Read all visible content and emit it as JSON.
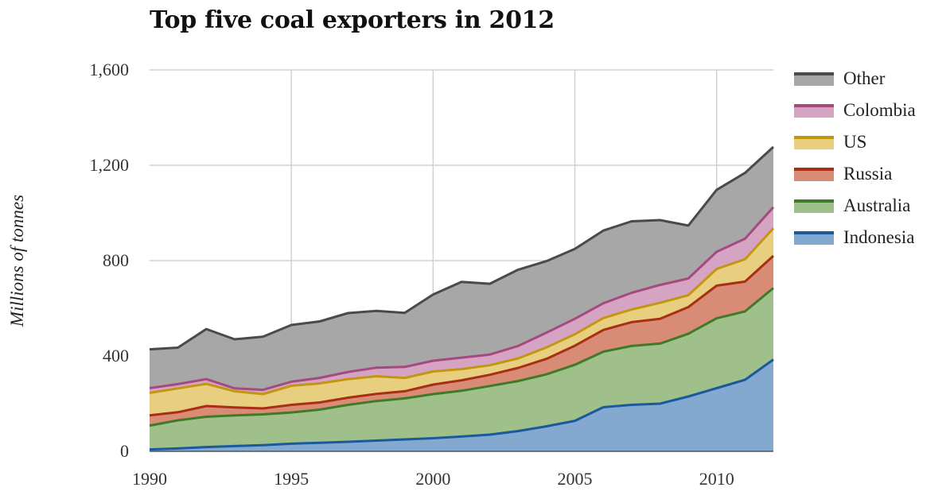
{
  "chart_data": {
    "type": "area",
    "stacked": true,
    "title": "Top five coal exporters in 2012",
    "xlabel": "",
    "ylabel": "Millions of tonnes",
    "xlim": [
      1990,
      2012
    ],
    "ylim": [
      0,
      1600
    ],
    "x_ticks": [
      1990,
      1995,
      2000,
      2005,
      2010
    ],
    "y_ticks": [
      0,
      400,
      800,
      1200,
      1600
    ],
    "y_tick_labels": [
      "0",
      "400",
      "800",
      "1,200",
      "1,600"
    ],
    "grid": true,
    "legend_position": "right",
    "x": [
      1990,
      1991,
      1992,
      1993,
      1994,
      1995,
      1996,
      1997,
      1998,
      1999,
      2000,
      2001,
      2002,
      2003,
      2004,
      2005,
      2006,
      2007,
      2008,
      2009,
      2010,
      2011,
      2012
    ],
    "series": [
      {
        "name": "Indonesia",
        "line_color": "#1a5a9a",
        "fill_color": "#84a9d0",
        "values": [
          8,
          12,
          18,
          22,
          26,
          32,
          36,
          40,
          45,
          50,
          55,
          62,
          70,
          85,
          105,
          128,
          185,
          195,
          200,
          230,
          265,
          300,
          385
        ]
      },
      {
        "name": "Australia",
        "line_color": "#3e7a27",
        "fill_color": "#9fc08a",
        "values": [
          100,
          118,
          127,
          129,
          129,
          131,
          139,
          155,
          166,
          172,
          185,
          192,
          204,
          210,
          218,
          235,
          233,
          247,
          252,
          263,
          293,
          287,
          300
        ]
      },
      {
        "name": "Russia",
        "line_color": "#a82e16",
        "fill_color": "#d98c75",
        "values": [
          43,
          34,
          45,
          33,
          25,
          32,
          30,
          30,
          30,
          30,
          40,
          44,
          47,
          55,
          65,
          80,
          91,
          100,
          104,
          112,
          137,
          125,
          135
        ]
      },
      {
        "name": "US",
        "line_color": "#c1970f",
        "fill_color": "#e8cf7f",
        "values": [
          94,
          100,
          93,
          68,
          60,
          80,
          80,
          78,
          74,
          56,
          55,
          47,
          40,
          40,
          48,
          48,
          50,
          53,
          67,
          50,
          70,
          94,
          116
        ]
      },
      {
        "name": "Colombia",
        "line_color": "#a5497f",
        "fill_color": "#d6a4c3",
        "values": [
          20,
          18,
          20,
          12,
          18,
          17,
          23,
          30,
          36,
          46,
          45,
          48,
          45,
          52,
          62,
          65,
          62,
          70,
          75,
          70,
          72,
          86,
          88
        ]
      },
      {
        "name": "Other",
        "line_color": "#4a4a4a",
        "fill_color": "#a7a7a7",
        "values": [
          163,
          153,
          210,
          206,
          223,
          238,
          237,
          247,
          238,
          227,
          278,
          318,
          297,
          320,
          300,
          293,
          305,
          300,
          272,
          222,
          260,
          276,
          253
        ]
      }
    ]
  }
}
